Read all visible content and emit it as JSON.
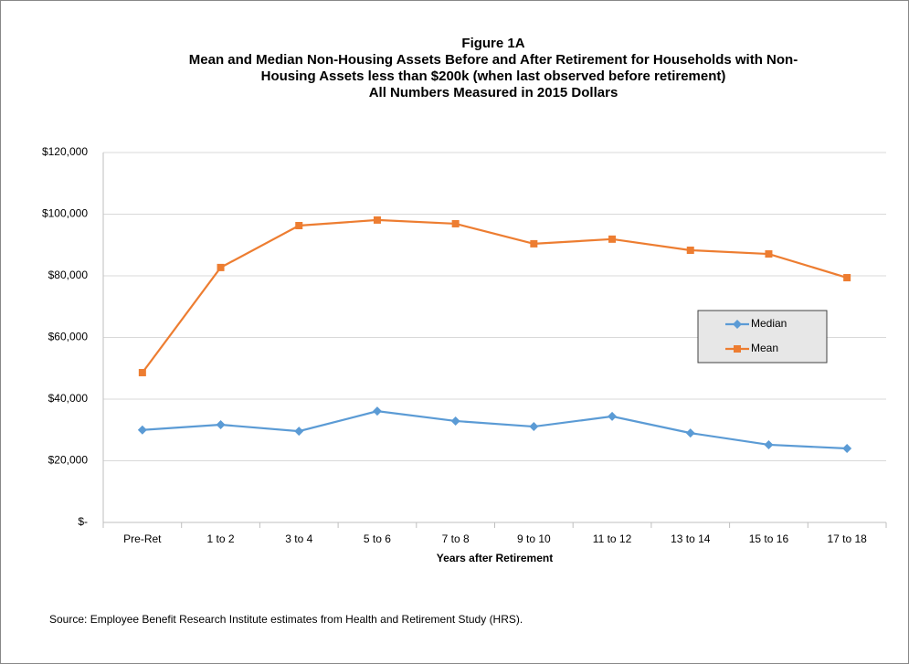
{
  "chart_data": {
    "type": "line",
    "title": [
      "Figure 1A",
      "Mean and Median Non-Housing Assets Before and After Retirement for Households with Non-",
      "Housing Assets less than $200k (when last observed before retirement)",
      "All Numbers Measured in 2015 Dollars"
    ],
    "x_label": "Years after Retirement",
    "source": "Source: Employee Benefit Research Institute estimates from Health and Retirement Study (HRS).",
    "categories": [
      "Pre-Ret",
      "1 to 2",
      "3 to 4",
      "5 to 6",
      "7 to 8",
      "9 to 10",
      "11 to 12",
      "13 to 14",
      "15 to 16",
      "17 to 18"
    ],
    "series": [
      {
        "name": "Median",
        "color": "#5b9bd5",
        "marker": "diamond",
        "values": [
          30000,
          31700,
          29600,
          36100,
          32900,
          31100,
          34400,
          29000,
          25200,
          24000
        ]
      },
      {
        "name": "Mean",
        "color": "#ed7d31",
        "marker": "square",
        "values": [
          48600,
          82700,
          96300,
          98100,
          96900,
          90400,
          91900,
          88300,
          87100,
          79400
        ]
      }
    ],
    "ylim": [
      0,
      120000
    ],
    "yticks": [
      {
        "value": 0,
        "label": "$-"
      },
      {
        "value": 20000,
        "label": "$20,000"
      },
      {
        "value": 40000,
        "label": "$40,000"
      },
      {
        "value": 60000,
        "label": "$60,000"
      },
      {
        "value": 80000,
        "label": "$80,000"
      },
      {
        "value": 100000,
        "label": "$100,000"
      },
      {
        "value": 120000,
        "label": "$120,000"
      }
    ],
    "grid": true,
    "legend": "right"
  }
}
